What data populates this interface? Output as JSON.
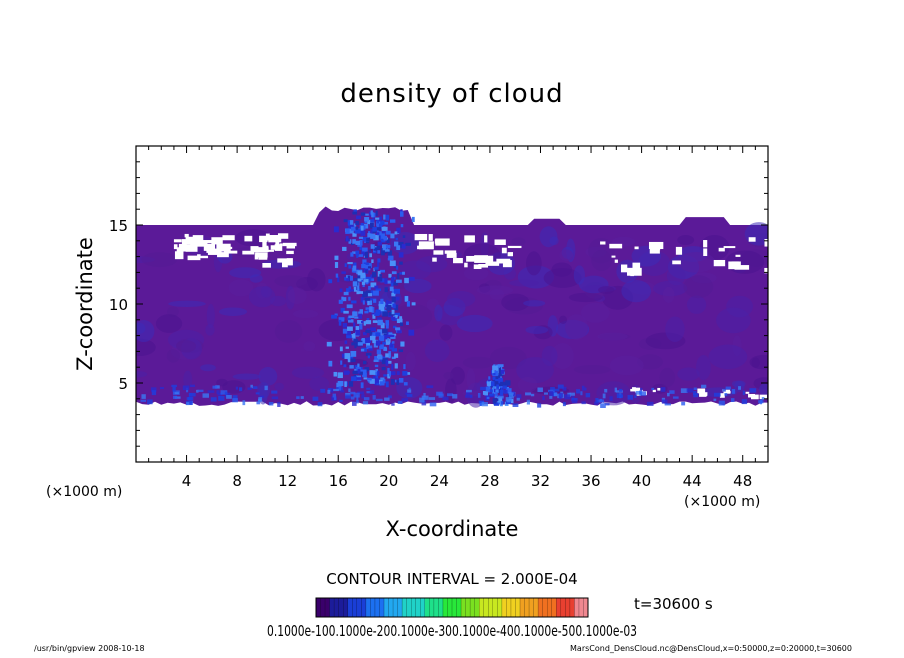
{
  "chart_data": {
    "type": "heatmap",
    "title": "density of cloud",
    "xlabel": "X-coordinate",
    "ylabel": "Z-coordinate",
    "x_unit": "(×1000 m)",
    "y_unit": "(×1000 m)",
    "xlim": [
      0,
      50
    ],
    "ylim": [
      0,
      20
    ],
    "x_ticks": [
      4,
      8,
      12,
      16,
      20,
      24,
      28,
      32,
      36,
      40,
      44,
      48
    ],
    "y_ticks": [
      5,
      10,
      15
    ],
    "contour_interval_label": "CONTOUR INTERVAL = 2.000E-04",
    "time_label": "t=30600 s",
    "colorbar_label_text": "0.1000e-100.1000e-200.1000e-300.1000e-400.1000e-500.1000e-03",
    "colorbar_colors": [
      "#3a006b",
      "#1c1c9a",
      "#1a3ed6",
      "#1c70f0",
      "#22a8f0",
      "#20d2c8",
      "#1ee08a",
      "#28e83a",
      "#7ae020",
      "#c8e820",
      "#f0d020",
      "#f0a020",
      "#f07020",
      "#e84030",
      "#f08890"
    ],
    "cloud_layer": {
      "base_km": 3.7,
      "top_km": 15.0,
      "max_top_km": 16.2
    },
    "convective_cores": [
      {
        "x_center_km": 18.5,
        "z_bottom_km": 5.0,
        "z_top_km": 16.0
      },
      {
        "x_center_km": 28.5,
        "z_bottom_km": 3.8,
        "z_top_km": 6.2
      }
    ],
    "footer_left": "/usr/bin/gpview   2008-10-18",
    "footer_right": "MarsCond_DensCloud.nc@DensCloud,x=0:50000,z=0:20000,t=30600"
  }
}
